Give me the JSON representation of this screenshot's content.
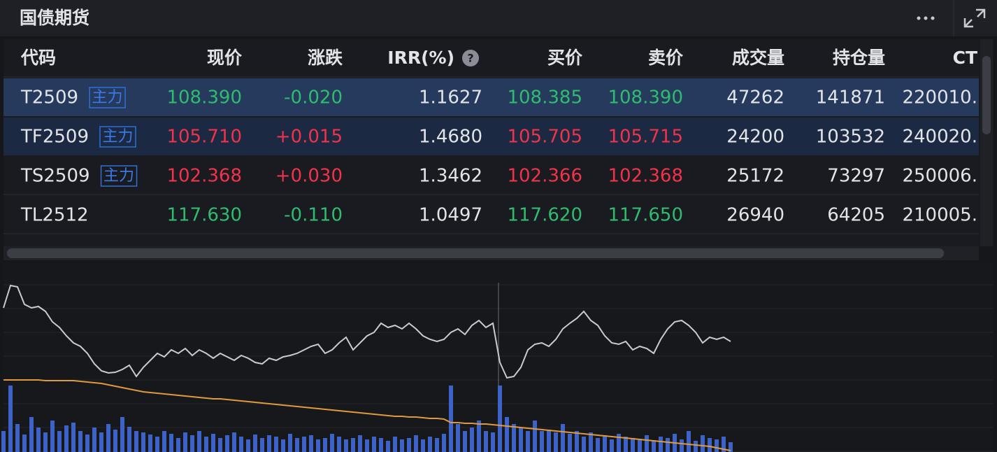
{
  "header": {
    "title": "国债期货"
  },
  "table": {
    "columns": [
      "代码",
      "现价",
      "涨跌",
      "IRR(%)",
      "买价",
      "卖价",
      "成交量",
      "持仓量",
      "CT"
    ],
    "rows": [
      {
        "code": "T2509",
        "tag": "主力",
        "color": "#2ebd6e",
        "cells": [
          "108.390",
          "-0.020",
          "1.1627",
          "108.385",
          "108.390",
          "47262",
          "141871",
          "220010."
        ]
      },
      {
        "code": "TF2509",
        "tag": "主力",
        "color": "#f0334a",
        "cells": [
          "105.710",
          "+0.015",
          "1.4680",
          "105.705",
          "105.715",
          "24200",
          "103532",
          "240020."
        ]
      },
      {
        "code": "TS2509",
        "tag": "主力",
        "color": "#f0334a",
        "cells": [
          "102.368",
          "+0.030",
          "1.3462",
          "102.366",
          "102.368",
          "25172",
          "73297",
          "250006."
        ]
      },
      {
        "code": "TL2512",
        "color": "#2ebd6e",
        "cells": [
          "117.630",
          "-0.110",
          "1.0497",
          "117.620",
          "117.650",
          "26940",
          "64205",
          "210005."
        ]
      }
    ]
  },
  "chart": {
    "ylim": [
      0,
      271
    ],
    "price_color": "#c9cbd3",
    "average_color": "#e0993e",
    "volume_color": "#3d63c9",
    "price": [
      206,
      238,
      236,
      211,
      206,
      208,
      201,
      186,
      178,
      166,
      156,
      151,
      141,
      126,
      116,
      113,
      114,
      118,
      124,
      108,
      121,
      131,
      141,
      136,
      146,
      141,
      148,
      138,
      146,
      141,
      134,
      141,
      136,
      131,
      138,
      134,
      128,
      126,
      134,
      131,
      136,
      138,
      141,
      146,
      151,
      154,
      141,
      146,
      156,
      164,
      146,
      156,
      166,
      171,
      184,
      178,
      181,
      176,
      184,
      176,
      166,
      161,
      158,
      161,
      171,
      176,
      168,
      181,
      188,
      178,
      184,
      128,
      106,
      108,
      121,
      146,
      154,
      156,
      151,
      161,
      176,
      184,
      191,
      201,
      188,
      181,
      166,
      156,
      154,
      158,
      146,
      151,
      148,
      141,
      161,
      176,
      186,
      188,
      181,
      171,
      156,
      164,
      161,
      164,
      158
    ],
    "average": [
      103,
      103,
      103,
      103,
      103,
      103,
      102,
      102,
      102,
      102,
      102,
      101,
      100,
      99,
      98,
      96,
      94,
      92,
      90,
      88,
      86,
      85,
      84,
      83,
      82,
      81,
      80,
      79,
      78,
      77,
      76,
      76,
      75,
      74,
      73,
      72,
      71,
      70,
      69,
      68,
      67,
      66,
      65,
      64,
      63,
      62,
      61,
      60,
      59,
      58,
      57,
      56,
      55,
      54,
      53,
      52,
      51,
      51,
      50,
      50,
      49,
      48,
      48,
      47,
      42,
      42,
      41,
      41,
      40,
      40,
      39,
      38,
      37,
      36,
      35,
      34,
      33,
      32,
      31,
      30,
      29,
      28,
      27,
      26,
      25,
      24,
      23,
      22,
      21,
      20,
      19,
      18,
      17,
      16,
      15,
      14,
      13,
      12,
      11,
      10,
      9,
      8,
      6,
      4,
      2
    ],
    "volume": [
      30,
      95,
      40,
      25,
      50,
      35,
      28,
      45,
      30,
      38,
      42,
      30,
      25,
      35,
      28,
      40,
      32,
      50,
      36,
      30,
      28,
      25,
      22,
      30,
      26,
      20,
      28,
      24,
      30,
      22,
      26,
      20,
      24,
      28,
      22,
      18,
      25,
      20,
      24,
      22,
      18,
      26,
      20,
      22,
      24,
      18,
      20,
      26,
      22,
      18,
      20,
      24,
      18,
      22,
      20,
      16,
      22,
      18,
      20,
      24,
      18,
      22,
      20,
      26,
      95,
      40,
      30,
      35,
      45,
      30,
      28,
      95,
      50,
      40,
      35,
      30,
      45,
      30,
      32,
      28,
      40,
      26,
      30,
      22,
      28,
      20,
      24,
      18,
      26,
      22,
      20,
      18,
      24,
      16,
      22,
      20,
      26,
      18,
      30,
      16,
      24,
      20,
      18,
      22,
      14
    ]
  }
}
